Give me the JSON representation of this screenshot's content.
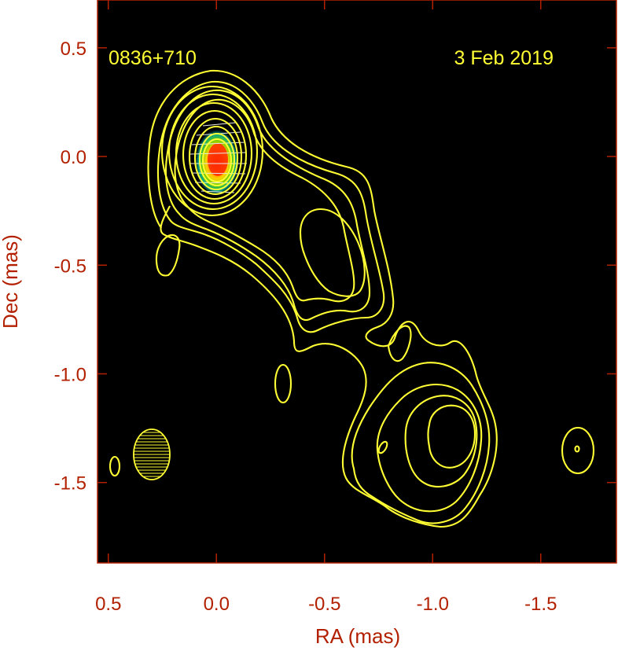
{
  "chart_data": {
    "type": "contour",
    "source": "0836+710",
    "date": "3 Feb 2019",
    "xlabel": "RA (mas)",
    "ylabel": "Dec (mas)",
    "xlim": [
      0.55,
      -1.85
    ],
    "ylim": [
      -1.87,
      0.72
    ],
    "x_ticks": [
      {
        "value": 0.5,
        "label": "0.5"
      },
      {
        "value": 0.0,
        "label": "0.0"
      },
      {
        "value": -0.5,
        "label": "-0.5"
      },
      {
        "value": -1.0,
        "label": "-1.0"
      },
      {
        "value": -1.5,
        "label": "-1.5"
      }
    ],
    "y_ticks": [
      {
        "value": 0.5,
        "label": "0.5"
      },
      {
        "value": 0.0,
        "label": "0.0"
      },
      {
        "value": -0.5,
        "label": "-0.5"
      },
      {
        "value": -1.0,
        "label": "-1.0"
      },
      {
        "value": -1.5,
        "label": "-1.5"
      }
    ],
    "core": {
      "ra": 0.0,
      "dec": 0.0
    },
    "beam": {
      "ra": 0.3,
      "dec": -1.37,
      "major_mas": 0.23,
      "minor_mas": 0.17
    },
    "components": [
      {
        "ra": -0.55,
        "dec": -0.45
      },
      {
        "ra": -1.05,
        "dec": -1.25
      }
    ],
    "colors": {
      "background": "#000000",
      "contour": "#ffff33",
      "axis": "#b22000",
      "annotation": "#ffff33",
      "core_peak": "#ff2a00"
    },
    "grid": false
  }
}
